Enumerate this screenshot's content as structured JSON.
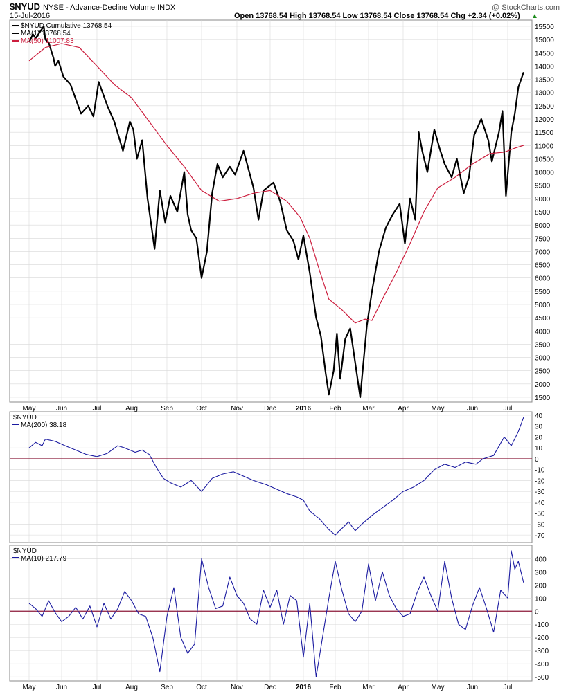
{
  "header": {
    "symbol": "$NYUD",
    "description": "NYSE - Advance-Decline Volume INDX",
    "date": "15-Jul-2016",
    "ohlc": "Open 13768.54  High 13768.54  Low 13768.54  Close 13768.54  Chg +2.34 (+0.02%)",
    "brand": "@ StockCharts.com"
  },
  "colors": {
    "black": "#000000",
    "red": "#cc1d3d",
    "blue": "#1a1aa0",
    "grid": "#d8d8d8",
    "zero": "#8b1a3a"
  },
  "chart_data": [
    {
      "type": "line",
      "panel": "main",
      "legend": [
        "$NYUD Cumulative 13768.54",
        "MA(1) 13768.54",
        "MA(50) 11007.83"
      ],
      "x_tick_labels": [
        "May",
        "Jun",
        "Jul",
        "Aug",
        "Sep",
        "Oct",
        "Nov",
        "Dec",
        "2016",
        "Feb",
        "Mar",
        "Apr",
        "May",
        "Jun",
        "Jul"
      ],
      "ylim": [
        1500,
        15500
      ],
      "y_ticks": [
        1500,
        2000,
        2500,
        3000,
        3500,
        4000,
        4500,
        5000,
        5500,
        6000,
        6500,
        7000,
        7500,
        8000,
        8500,
        9000,
        9500,
        10000,
        10500,
        11000,
        11500,
        12000,
        12500,
        13000,
        13500,
        14000,
        14500,
        15000,
        15500
      ],
      "series": [
        {
          "name": "MA(1)",
          "x": [
            0,
            0.12,
            0.2,
            0.45,
            0.5,
            0.6,
            0.75,
            0.8,
            0.9,
            1.05,
            1.25,
            1.55,
            1.75,
            1.9,
            2.05,
            2.3,
            2.5,
            2.75,
            2.95,
            3.05,
            3.15,
            3.3,
            3.45,
            3.65,
            3.8,
            3.95,
            4.1,
            4.3,
            4.5,
            4.6,
            4.7,
            4.85,
            5.0,
            5.15,
            5.3,
            5.45,
            5.6,
            5.8,
            5.95,
            6.2,
            6.5,
            6.65,
            6.8,
            7.1,
            7.3,
            7.5,
            7.7,
            7.85,
            8.0,
            8.2,
            8.4,
            8.55,
            8.7,
            8.8,
            8.95,
            9.05,
            9.15,
            9.3,
            9.45,
            9.6,
            9.75,
            9.95,
            10.1,
            10.3,
            10.5,
            10.7,
            10.9,
            11.05,
            11.2,
            11.35,
            11.45,
            11.55,
            11.7,
            11.9,
            12.05,
            12.2,
            12.4,
            12.55,
            12.75,
            12.9,
            13.05,
            13.25,
            13.45,
            13.55,
            13.75,
            13.85,
            13.95,
            14.1,
            14.2,
            14.3,
            14.45
          ],
          "values": [
            14900,
            15200,
            15050,
            15500,
            15000,
            14900,
            14300,
            14000,
            14200,
            13600,
            13300,
            12200,
            12500,
            12100,
            13400,
            12500,
            11900,
            10800,
            11900,
            11600,
            10500,
            11200,
            9000,
            7100,
            9300,
            8100,
            9100,
            8500,
            10000,
            8400,
            7800,
            7500,
            6000,
            7000,
            9200,
            10300,
            9800,
            10200,
            9900,
            10800,
            9400,
            8200,
            9300,
            9600,
            8900,
            7800,
            7400,
            6700,
            7600,
            6200,
            4500,
            3800,
            2400,
            1600,
            2500,
            3900,
            2200,
            3700,
            4100,
            2800,
            1500,
            4200,
            5500,
            7000,
            7900,
            8400,
            8800,
            7300,
            9000,
            8200,
            11500,
            10800,
            10000,
            11600,
            10900,
            10300,
            9800,
            10500,
            9200,
            9800,
            11400,
            12000,
            11200,
            10400,
            11500,
            12300,
            9100,
            11500,
            12200,
            13200,
            13768.54
          ]
        },
        {
          "name": "MA(50)",
          "x": [
            0,
            0.5,
            1.0,
            1.5,
            2.0,
            2.5,
            3.0,
            3.5,
            4.0,
            4.5,
            5.0,
            5.5,
            6.0,
            6.5,
            7.0,
            7.5,
            7.9,
            8.2,
            8.5,
            8.8,
            9.2,
            9.6,
            9.9,
            10.1,
            10.4,
            10.8,
            11.2,
            11.6,
            12.0,
            12.5,
            13.0,
            13.5,
            13.9,
            14.2,
            14.45
          ],
          "values": [
            14200,
            14700,
            14850,
            14700,
            14000,
            13300,
            12800,
            11900,
            11000,
            10200,
            9300,
            8900,
            9000,
            9200,
            9300,
            8900,
            8300,
            7500,
            6300,
            5200,
            4800,
            4300,
            4450,
            4400,
            5200,
            6200,
            7300,
            8500,
            9400,
            9800,
            10300,
            10700,
            10750,
            10900,
            11007.83
          ]
        }
      ]
    },
    {
      "type": "line",
      "panel": "middle",
      "legend": [
        "$NYUD",
        "MA(200) 38.18"
      ],
      "ylim": [
        -75,
        40
      ],
      "y_ticks": [
        40,
        30,
        20,
        10,
        0,
        -10,
        -20,
        -30,
        -40,
        -50,
        -60,
        -70
      ],
      "series": [
        {
          "name": "MA(200)",
          "x": [
            0,
            0.2,
            0.4,
            0.5,
            0.8,
            1.1,
            1.4,
            1.7,
            2.0,
            2.3,
            2.6,
            2.8,
            3.1,
            3.3,
            3.5,
            3.7,
            3.9,
            4.1,
            4.4,
            4.7,
            5.0,
            5.3,
            5.6,
            5.9,
            6.2,
            6.5,
            6.9,
            7.2,
            7.5,
            7.8,
            8.0,
            8.2,
            8.5,
            8.8,
            9.0,
            9.2,
            9.4,
            9.6,
            9.8,
            10.1,
            10.4,
            10.7,
            11.0,
            11.3,
            11.6,
            11.9,
            12.2,
            12.5,
            12.8,
            13.1,
            13.3,
            13.6,
            13.9,
            14.1,
            14.3,
            14.45
          ],
          "values": [
            10,
            15,
            12,
            18,
            16,
            12,
            8,
            4,
            2,
            5,
            12,
            10,
            6,
            8,
            4,
            -8,
            -18,
            -22,
            -26,
            -20,
            -30,
            -18,
            -14,
            -12,
            -16,
            -20,
            -24,
            -28,
            -32,
            -35,
            -38,
            -48,
            -55,
            -65,
            -70,
            -64,
            -58,
            -66,
            -60,
            -52,
            -45,
            -38,
            -30,
            -26,
            -20,
            -10,
            -5,
            -8,
            -3,
            -5,
            0,
            3,
            20,
            12,
            25,
            38.18
          ]
        }
      ]
    },
    {
      "type": "line",
      "panel": "bottom",
      "legend": [
        "$NYUD",
        "MA(10) 217.79"
      ],
      "ylim": [
        -520,
        470
      ],
      "y_ticks": [
        400,
        300,
        200,
        100,
        0,
        -100,
        -200,
        -300,
        -400,
        -500
      ],
      "series": [
        {
          "name": "MA(10)",
          "x": [
            0,
            0.2,
            0.4,
            0.6,
            0.8,
            1.0,
            1.2,
            1.4,
            1.6,
            1.8,
            2.0,
            2.2,
            2.4,
            2.6,
            2.8,
            3.0,
            3.2,
            3.4,
            3.6,
            3.8,
            4.0,
            4.2,
            4.4,
            4.6,
            4.8,
            5.0,
            5.2,
            5.4,
            5.6,
            5.8,
            6.0,
            6.2,
            6.4,
            6.6,
            6.8,
            7.0,
            7.2,
            7.4,
            7.6,
            7.8,
            8.0,
            8.2,
            8.4,
            8.6,
            8.8,
            9.0,
            9.2,
            9.4,
            9.6,
            9.8,
            10.0,
            10.2,
            10.4,
            10.6,
            10.8,
            11.0,
            11.2,
            11.4,
            11.6,
            11.8,
            12.0,
            12.2,
            12.4,
            12.6,
            12.8,
            13.0,
            13.2,
            13.4,
            13.6,
            13.8,
            14.0,
            14.1,
            14.2,
            14.3,
            14.45
          ],
          "values": [
            60,
            20,
            -40,
            80,
            -10,
            -80,
            -40,
            30,
            -60,
            40,
            -120,
            60,
            -60,
            20,
            150,
            80,
            -20,
            -40,
            -200,
            -460,
            -40,
            180,
            -200,
            -320,
            -250,
            400,
            180,
            20,
            40,
            260,
            120,
            60,
            -60,
            -100,
            160,
            30,
            160,
            -100,
            120,
            80,
            -350,
            60,
            -500,
            -200,
            100,
            380,
            160,
            -20,
            -80,
            0,
            360,
            80,
            300,
            120,
            20,
            -40,
            -20,
            140,
            260,
            120,
            0,
            380,
            100,
            -100,
            -140,
            40,
            180,
            20,
            -160,
            160,
            100,
            460,
            320,
            380,
            217.79
          ]
        }
      ]
    }
  ]
}
